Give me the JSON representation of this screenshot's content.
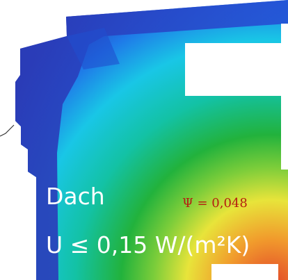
{
  "labels": {
    "component": "Dach",
    "u_value": "U ≤ 0,15 W/(m²K)",
    "psi_value": "Ψ = 0,048"
  },
  "colors": {
    "cold_blue": "#2a3bb6",
    "blue": "#1f78e8",
    "cyan": "#19c6e6",
    "teal": "#13c2a5",
    "green": "#22b23c",
    "yellow": "#e8e43a",
    "orange": "#f19a2c",
    "red": "#e2442a"
  }
}
